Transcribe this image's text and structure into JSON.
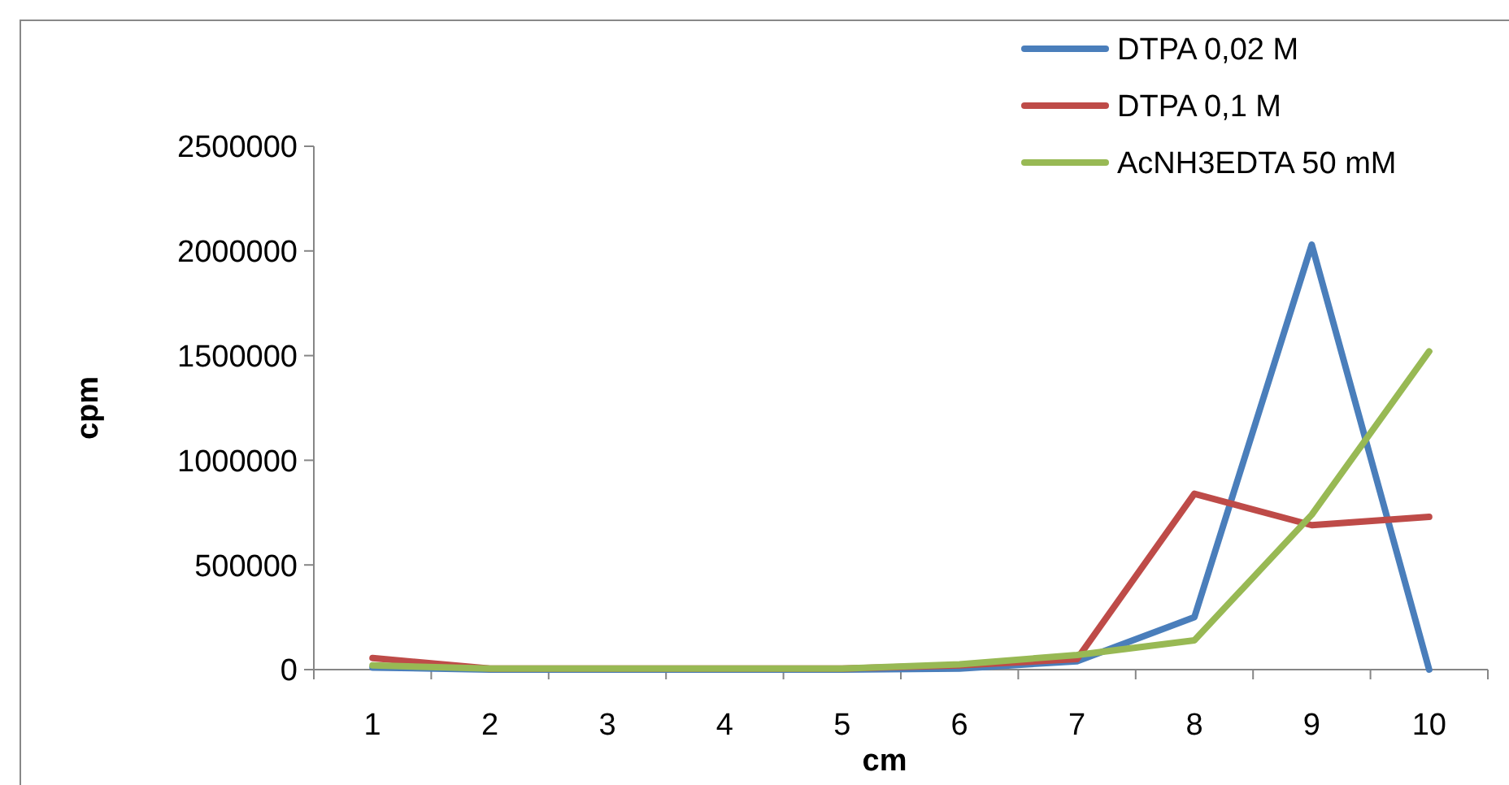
{
  "chart_data": {
    "type": "line",
    "xlabel": "cm",
    "ylabel": "cpm",
    "categories": [
      "1",
      "2",
      "3",
      "4",
      "5",
      "6",
      "7",
      "8",
      "9",
      "10"
    ],
    "ylim": [
      0,
      2500000
    ],
    "yticks": [
      0,
      500000,
      1000000,
      1500000,
      2000000,
      2500000
    ],
    "grid": false,
    "legend": "top right",
    "marker": "none",
    "line_style": "solid",
    "series": [
      {
        "name": "DTPA 0,02 M",
        "color": "#4a7ebb",
        "values": [
          10000,
          0,
          0,
          0,
          0,
          5000,
          40000,
          250000,
          2030000,
          0
        ]
      },
      {
        "name": "DTPA 0,1 M",
        "color": "#be4b48",
        "values": [
          55000,
          5000,
          5000,
          5000,
          5000,
          20000,
          50000,
          840000,
          690000,
          730000
        ]
      },
      {
        "name": "AcNH3EDTA 50 mM",
        "color": "#98b954",
        "values": [
          20000,
          5000,
          5000,
          5000,
          5000,
          25000,
          70000,
          140000,
          740000,
          1520000
        ]
      }
    ]
  }
}
